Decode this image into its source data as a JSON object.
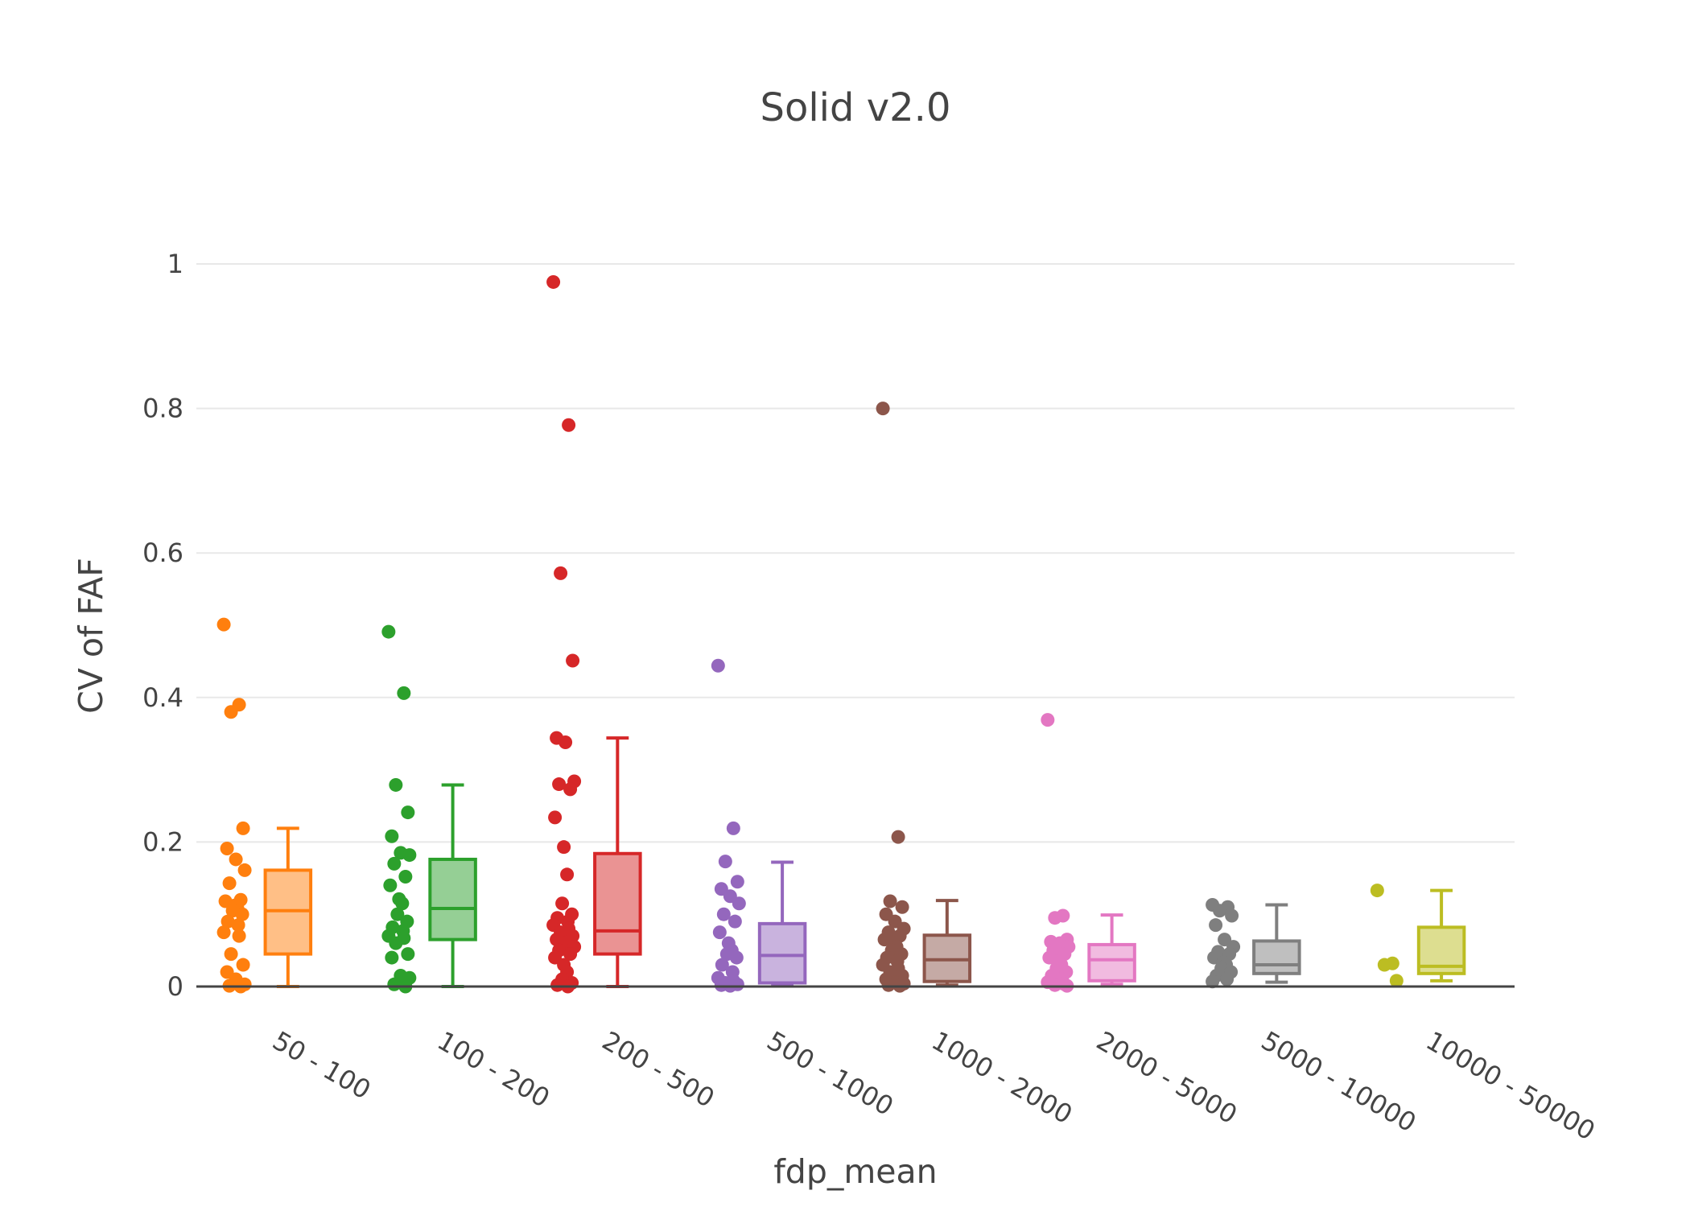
{
  "chart_data": {
    "type": "box",
    "title": "Solid v2.0",
    "xlabel": "fdp_mean",
    "ylabel": "CV of FAF",
    "ylim": [
      -0.05,
      1.05
    ],
    "yticks": [
      0,
      0.2,
      0.4,
      0.6,
      0.8,
      1
    ],
    "ytick_labels": [
      "0",
      "0.2",
      "0.4",
      "0.6",
      "0.8",
      "1"
    ],
    "grid": true,
    "legend": "none",
    "categories": [
      "50 - 100",
      "100 - 200",
      "200 - 500",
      "500 - 1000",
      "1000 - 2000",
      "2000 - 5000",
      "5000 - 10000",
      "10000 - 50000"
    ],
    "series": [
      {
        "name": "50 - 100",
        "color": "#ff7f0e",
        "box": {
          "min": 0,
          "q1": 0.045,
          "median": 0.105,
          "q3": 0.161,
          "max": 0.219
        },
        "points": [
          0.501,
          0.39,
          0.38,
          0.219,
          0.191,
          0.176,
          0.161,
          0.143,
          0.12,
          0.118,
          0.112,
          0.108,
          0.105,
          0.1,
          0.09,
          0.085,
          0.075,
          0.07,
          0.045,
          0.03,
          0.02,
          0.01,
          0.003,
          0.001,
          0.0
        ]
      },
      {
        "name": "100 - 200",
        "color": "#2ca02c",
        "box": {
          "min": 0,
          "q1": 0.065,
          "median": 0.108,
          "q3": 0.176,
          "max": 0.279
        },
        "points": [
          0.491,
          0.406,
          0.279,
          0.241,
          0.208,
          0.185,
          0.182,
          0.17,
          0.152,
          0.14,
          0.121,
          0.115,
          0.1,
          0.09,
          0.082,
          0.077,
          0.07,
          0.067,
          0.06,
          0.045,
          0.04,
          0.015,
          0.012,
          0.003,
          0.0
        ]
      },
      {
        "name": "200 - 500",
        "color": "#d62728",
        "box": {
          "min": 0,
          "q1": 0.045,
          "median": 0.077,
          "q3": 0.184,
          "max": 0.344
        },
        "points": [
          0.975,
          0.777,
          0.572,
          0.451,
          0.344,
          0.338,
          0.284,
          0.28,
          0.273,
          0.234,
          0.193,
          0.155,
          0.115,
          0.1,
          0.095,
          0.09,
          0.085,
          0.08,
          0.075,
          0.07,
          0.065,
          0.06,
          0.055,
          0.05,
          0.045,
          0.04,
          0.03,
          0.02,
          0.01,
          0.005,
          0.002,
          0.0
        ]
      },
      {
        "name": "500 - 1000",
        "color": "#9467bd",
        "box": {
          "min": 0.003,
          "q1": 0.005,
          "median": 0.043,
          "q3": 0.087,
          "max": 0.172
        },
        "points": [
          0.444,
          0.219,
          0.173,
          0.145,
          0.135,
          0.125,
          0.115,
          0.1,
          0.09,
          0.075,
          0.06,
          0.05,
          0.045,
          0.04,
          0.03,
          0.02,
          0.012,
          0.008,
          0.005,
          0.003,
          0.002,
          0.001
        ]
      },
      {
        "name": "1000 - 2000",
        "color": "#8c564b",
        "box": {
          "min": 0.002,
          "q1": 0.007,
          "median": 0.037,
          "q3": 0.071,
          "max": 0.119
        },
        "points": [
          0.8,
          0.207,
          0.118,
          0.11,
          0.1,
          0.09,
          0.08,
          0.075,
          0.07,
          0.065,
          0.06,
          0.055,
          0.05,
          0.045,
          0.04,
          0.035,
          0.03,
          0.025,
          0.02,
          0.015,
          0.01,
          0.006,
          0.004,
          0.002,
          0.001
        ]
      },
      {
        "name": "2000 - 5000",
        "color": "#e377c2",
        "box": {
          "min": 0.003,
          "q1": 0.008,
          "median": 0.037,
          "q3": 0.058,
          "max": 0.099
        },
        "points": [
          0.369,
          0.098,
          0.095,
          0.065,
          0.062,
          0.06,
          0.055,
          0.05,
          0.045,
          0.04,
          0.035,
          0.03,
          0.025,
          0.02,
          0.015,
          0.01,
          0.006,
          0.004,
          0.002,
          0.001
        ]
      },
      {
        "name": "5000 - 10000",
        "color": "#7f7f7f",
        "box": {
          "min": 0.006,
          "q1": 0.018,
          "median": 0.03,
          "q3": 0.063,
          "max": 0.113
        },
        "points": [
          0.113,
          0.11,
          0.105,
          0.098,
          0.085,
          0.065,
          0.055,
          0.048,
          0.045,
          0.04,
          0.033,
          0.03,
          0.025,
          0.02,
          0.015,
          0.01,
          0.007
        ]
      },
      {
        "name": "10000 - 50000",
        "color": "#bcbd22",
        "box": {
          "min": 0.008,
          "q1": 0.018,
          "median": 0.028,
          "q3": 0.082,
          "max": 0.133
        },
        "points": [
          0.133,
          0.032,
          0.03,
          0.008
        ]
      }
    ]
  }
}
